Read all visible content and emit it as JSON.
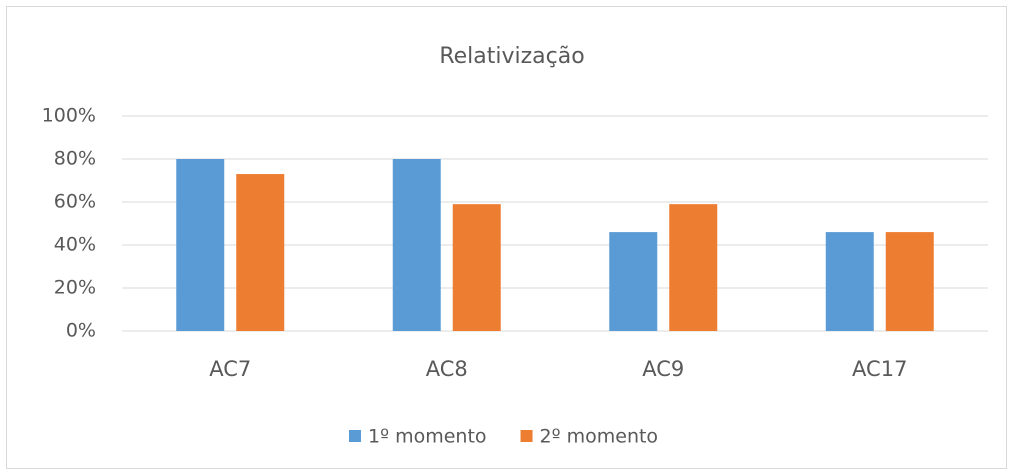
{
  "chart_data": {
    "type": "bar",
    "title": "Relativização",
    "categories": [
      "AC7",
      "AC8",
      "AC9",
      "AC17"
    ],
    "series": [
      {
        "name": "1º momento",
        "color": "#5b9bd5",
        "values": [
          80,
          80,
          46,
          46
        ]
      },
      {
        "name": "2º momento",
        "color": "#ed7d31",
        "values": [
          73,
          59,
          59,
          46
        ]
      }
    ],
    "ylim": [
      0,
      100
    ],
    "yticks": [
      {
        "value": 0,
        "label": "0%"
      },
      {
        "value": 20,
        "label": "20%"
      },
      {
        "value": 40,
        "label": "40%"
      },
      {
        "value": 60,
        "label": "60%"
      },
      {
        "value": 80,
        "label": "80%"
      },
      {
        "value": 100,
        "label": "100%"
      }
    ],
    "grid": true,
    "legend": "bottom"
  }
}
